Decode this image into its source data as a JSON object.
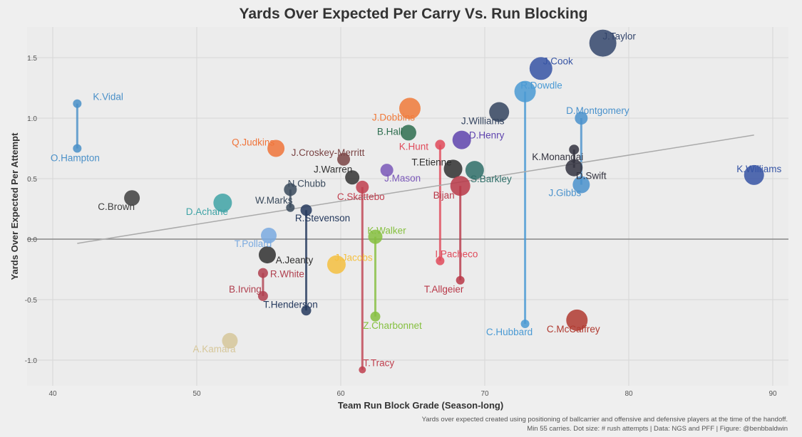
{
  "chart_data": {
    "type": "scatter",
    "title": "Yards Over Expected Per Carry Vs. Run Blocking",
    "xlabel": "Team Run Block Grade (Season-long)",
    "ylabel": "Yards Over Expected Per Attempt",
    "xlim": [
      38.5,
      91
    ],
    "ylim": [
      -1.2,
      1.75
    ],
    "xticks": [
      40,
      50,
      60,
      70,
      80,
      90
    ],
    "yticks": [
      -1.0,
      -0.5,
      0.0,
      0.5,
      1.0,
      1.5
    ],
    "xtick_labels": [
      "40",
      "50",
      "60",
      "70",
      "80",
      "90"
    ],
    "ytick_labels": [
      "-1.0",
      "-0.5",
      "0.0",
      "0.5",
      "1.0",
      "1.5"
    ],
    "grid": true,
    "reference_line_y": 0,
    "trend_line": {
      "x": [
        41.7,
        88.7
      ],
      "y": [
        -0.035,
        0.86
      ],
      "color": "#aaaaaa"
    },
    "caption": [
      "Yards over expected created using positioning of ballcarrier and offensive and defensive players at the time of the handoff.",
      "Min 55 carries. Dot size: # rush attempts | Data: NGS and PFF | Figure: @benbbaldwin"
    ],
    "points": [
      {
        "name": "K.Vidal",
        "x": 41.7,
        "y": 1.12,
        "color": "#4a90c8"
      },
      {
        "name": "O.Hampton",
        "x": 41.7,
        "y": 0.75,
        "color": "#4a90c8"
      },
      {
        "name": "C.Brown",
        "x": 45.5,
        "y": 0.34,
        "color": "#404040"
      },
      {
        "name": "D.Achane",
        "x": 51.8,
        "y": 0.3,
        "color": "#3fa3a6"
      },
      {
        "name": "Q.Judkins",
        "x": 55.5,
        "y": 0.75,
        "color": "#f0743a"
      },
      {
        "name": "J.Croskey-Merritt",
        "x": 60.2,
        "y": 0.66,
        "color": "#7a4444"
      },
      {
        "name": "J.Warren",
        "x": 60.8,
        "y": 0.51,
        "color": "#333333"
      },
      {
        "name": "J.Mason",
        "x": 63.2,
        "y": 0.57,
        "color": "#7a58b8"
      },
      {
        "name": "N.Chubb",
        "x": 56.5,
        "y": 0.41,
        "color": "#3a4a5c"
      },
      {
        "name": "W.Marks",
        "x": 56.5,
        "y": 0.26,
        "color": "#3a4a5c"
      },
      {
        "name": "R.Stevenson",
        "x": 57.6,
        "y": 0.24,
        "color": "#263a5e"
      },
      {
        "name": "T.Henderson",
        "x": 57.6,
        "y": -0.59,
        "color": "#263a5e"
      },
      {
        "name": "C.Skattebo",
        "x": 61.5,
        "y": 0.43,
        "color": "#c0404f"
      },
      {
        "name": "T.Tracy",
        "x": 61.5,
        "y": -1.08,
        "color": "#c0404f"
      },
      {
        "name": "K.Walker",
        "x": 62.4,
        "y": 0.02,
        "color": "#86c040"
      },
      {
        "name": "Z.Charbonnet",
        "x": 62.4,
        "y": -0.64,
        "color": "#86c040"
      },
      {
        "name": "T.Pollard",
        "x": 55.0,
        "y": 0.03,
        "color": "#7aaae0"
      },
      {
        "name": "A.Jeanty",
        "x": 54.9,
        "y": -0.13,
        "color": "#303030"
      },
      {
        "name": "R.White",
        "x": 54.6,
        "y": -0.28,
        "color": "#b0404f"
      },
      {
        "name": "B.Irving",
        "x": 54.6,
        "y": -0.47,
        "color": "#b0404f"
      },
      {
        "name": "J.Jacobs",
        "x": 59.7,
        "y": -0.21,
        "color": "#f5c040"
      },
      {
        "name": "A.Kamara",
        "x": 52.3,
        "y": -0.84,
        "color": "#d6c79a"
      },
      {
        "name": "J.Dobbins",
        "x": 64.8,
        "y": 1.08,
        "color": "#f07a3a"
      },
      {
        "name": "B.Hall",
        "x": 64.7,
        "y": 0.88,
        "color": "#2f6e50"
      },
      {
        "name": "K.Hunt",
        "x": 66.9,
        "y": 0.78,
        "color": "#e04a5a"
      },
      {
        "name": "I.Pacheco",
        "x": 66.9,
        "y": -0.18,
        "color": "#e04a5a"
      },
      {
        "name": "D.Henry",
        "x": 68.4,
        "y": 0.82,
        "color": "#5f44ae"
      },
      {
        "name": "T.Etienne",
        "x": 67.8,
        "y": 0.58,
        "color": "#303030"
      },
      {
        "name": "S.Barkley",
        "x": 69.3,
        "y": 0.57,
        "color": "#2f6e68"
      },
      {
        "name": "Bijan",
        "x": 68.3,
        "y": 0.44,
        "color": "#b83848"
      },
      {
        "name": "T.Allgeier",
        "x": 68.3,
        "y": -0.34,
        "color": "#b83848"
      },
      {
        "name": "J.Williams",
        "x": 71.0,
        "y": 1.05,
        "color": "#34445f"
      },
      {
        "name": "R.Dowdle",
        "x": 72.8,
        "y": 1.22,
        "color": "#4a9ad4"
      },
      {
        "name": "C.Hubbard",
        "x": 72.8,
        "y": -0.7,
        "color": "#4a9ad4"
      },
      {
        "name": "J.Cook",
        "x": 73.9,
        "y": 1.41,
        "color": "#3654a4"
      },
      {
        "name": "J.Taylor",
        "x": 78.2,
        "y": 1.62,
        "color": "#34466c"
      },
      {
        "name": "D.Montgomery",
        "x": 76.7,
        "y": 1.0,
        "color": "#4a92cc"
      },
      {
        "name": "J.Gibbs",
        "x": 76.7,
        "y": 0.45,
        "color": "#4a92cc"
      },
      {
        "name": "K.Monangai",
        "x": 76.2,
        "y": 0.74,
        "color": "#33333f"
      },
      {
        "name": "D.Swift",
        "x": 76.2,
        "y": 0.59,
        "color": "#33333f"
      },
      {
        "name": "C.McCaffrey",
        "x": 76.4,
        "y": -0.67,
        "color": "#b03a30"
      },
      {
        "name": "K.Williams",
        "x": 88.7,
        "y": 0.53,
        "color": "#3654a4"
      }
    ],
    "connections": [
      [
        "K.Vidal",
        "O.Hampton"
      ],
      [
        "N.Chubb",
        "W.Marks"
      ],
      [
        "R.Stevenson",
        "T.Henderson"
      ],
      [
        "C.Skattebo",
        "T.Tracy"
      ],
      [
        "K.Walker",
        "Z.Charbonnet"
      ],
      [
        "R.White",
        "B.Irving"
      ],
      [
        "K.Hunt",
        "I.Pacheco"
      ],
      [
        "Bijan",
        "T.Allgeier"
      ],
      [
        "R.Dowdle",
        "C.Hubbard"
      ],
      [
        "D.Montgomery",
        "J.Gibbs"
      ],
      [
        "K.Monangai",
        "D.Swift"
      ]
    ]
  }
}
